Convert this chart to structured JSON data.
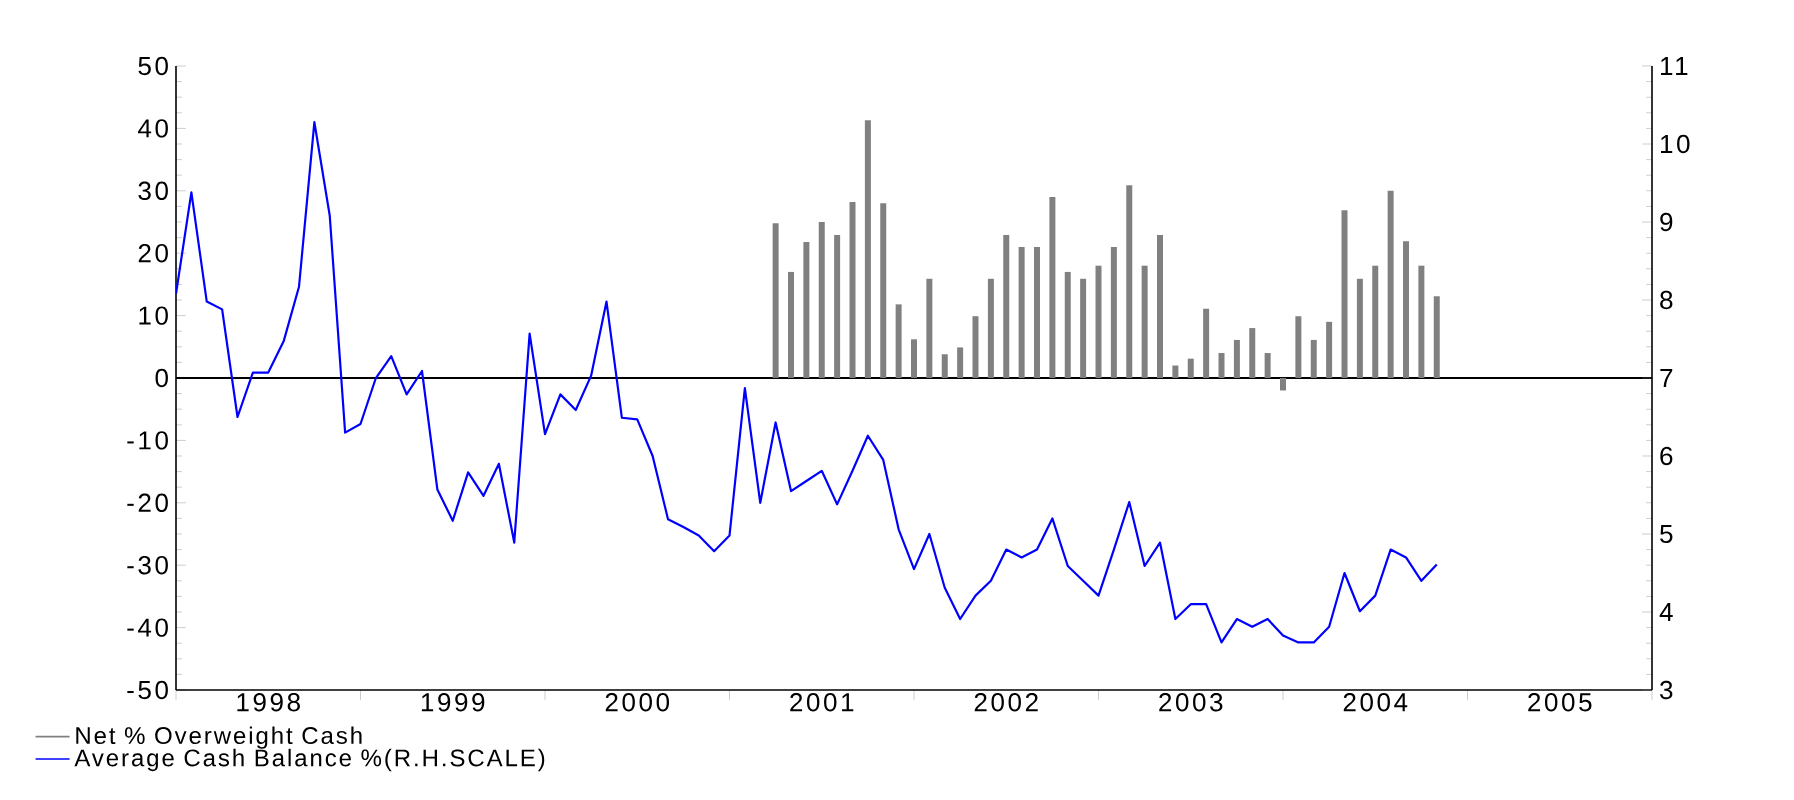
{
  "chart_data": {
    "type": "bar",
    "x": [
      "1998-01",
      "1998-02",
      "1998-03",
      "1998-04",
      "1998-05",
      "1998-06",
      "1998-07",
      "1998-08",
      "1998-09",
      "1998-10",
      "1998-11",
      "1998-12",
      "1999-01",
      "1999-02",
      "1999-03",
      "1999-04",
      "1999-05",
      "1999-06",
      "1999-07",
      "1999-08",
      "1999-09",
      "1999-10",
      "1999-11",
      "1999-12",
      "2000-01",
      "2000-02",
      "2000-03",
      "2000-04",
      "2000-05",
      "2000-06",
      "2000-07",
      "2000-08",
      "2000-09",
      "2000-10",
      "2000-11",
      "2000-12",
      "2001-01",
      "2001-02",
      "2001-03",
      "2001-04",
      "2001-05",
      "2001-06",
      "2001-07",
      "2001-08",
      "2001-09",
      "2001-10",
      "2001-11",
      "2001-12",
      "2002-01",
      "2002-02",
      "2002-03",
      "2002-04",
      "2002-05",
      "2002-06",
      "2002-07",
      "2002-08",
      "2002-09",
      "2002-10",
      "2002-11",
      "2002-12",
      "2003-01",
      "2003-02",
      "2003-03",
      "2003-04",
      "2003-05",
      "2003-06",
      "2003-07",
      "2003-08",
      "2003-09",
      "2003-10",
      "2003-11",
      "2003-12",
      "2004-01",
      "2004-02",
      "2004-03",
      "2004-04",
      "2004-05",
      "2004-06",
      "2004-07",
      "2004-08",
      "2004-09",
      "2004-10",
      "2004-11"
    ],
    "series": [
      {
        "name": "Net % Overweight Cash",
        "color": "#808080",
        "values": [
          null,
          null,
          null,
          null,
          null,
          null,
          null,
          null,
          null,
          null,
          null,
          null,
          null,
          null,
          null,
          null,
          null,
          null,
          null,
          null,
          null,
          null,
          null,
          null,
          null,
          null,
          null,
          null,
          null,
          null,
          null,
          null,
          null,
          null,
          null,
          null,
          null,
          null,
          null,
          24.8,
          17,
          21.8,
          25,
          22.9,
          28.2,
          41.3,
          28,
          11.8,
          6.2,
          15.9,
          3.8,
          4.9,
          9.9,
          15.9,
          22.9,
          21,
          21,
          29,
          17,
          15.9,
          18,
          21,
          30.9,
          18,
          22.9,
          2,
          3.1,
          11.1,
          4,
          6.1,
          8,
          4,
          -2,
          9.9,
          6.1,
          9,
          26.9,
          15.9,
          18,
          30,
          21.9,
          18,
          13.1
        ]
      },
      {
        "name": "Average Cash Balance %(R.H.SCALE)",
        "type": "line",
        "axis": "y2",
        "color": "#0000ff",
        "values": [
          8.08,
          9.38,
          7.98,
          7.88,
          6.5,
          7.07,
          7.07,
          7.47,
          8.17,
          10.28,
          9.08,
          6.3,
          6.41,
          7.0,
          7.28,
          6.79,
          7.09,
          5.57,
          5.17,
          5.79,
          5.49,
          5.9,
          4.89,
          7.57,
          6.28,
          6.79,
          6.59,
          7.03,
          7.98,
          6.49,
          6.47,
          6.0,
          5.19,
          5.09,
          4.98,
          4.78,
          4.98,
          6.87,
          5.4,
          6.43,
          5.55,
          5.68,
          5.81,
          5.38,
          5.81,
          6.26,
          5.95,
          5.06,
          4.55,
          5.0,
          4.31,
          3.91,
          4.21,
          4.4,
          4.8,
          4.7,
          4.8,
          5.2,
          4.59,
          4.4,
          4.21,
          4.8,
          5.41,
          4.59,
          4.89,
          3.91,
          4.1,
          4.1,
          3.61,
          3.91,
          3.81,
          3.91,
          3.7,
          3.61,
          3.61,
          3.81,
          4.5,
          4.01,
          4.21,
          4.8,
          4.7,
          4.4,
          4.61
        ]
      }
    ],
    "xlim": [
      "1998-01",
      "2006-01"
    ],
    "xticks": [
      {
        "value": "1998-01",
        "label": null
      },
      {
        "value": "1998-07",
        "label": "1998"
      },
      {
        "value": "1999-01",
        "label": null
      },
      {
        "value": "1999-07",
        "label": "1999"
      },
      {
        "value": "2000-01",
        "label": null
      },
      {
        "value": "2000-07",
        "label": "2000"
      },
      {
        "value": "2001-01",
        "label": null
      },
      {
        "value": "2001-07",
        "label": "2001"
      },
      {
        "value": "2002-01",
        "label": null
      },
      {
        "value": "2002-07",
        "label": "2002"
      },
      {
        "value": "2003-01",
        "label": null
      },
      {
        "value": "2003-07",
        "label": "2003"
      },
      {
        "value": "2004-01",
        "label": null
      },
      {
        "value": "2004-07",
        "label": "2004"
      },
      {
        "value": "2005-01",
        "label": null
      },
      {
        "value": "2005-07",
        "label": "2005"
      },
      {
        "value": "2006-01",
        "label": null
      }
    ],
    "ylim": [
      -50,
      50
    ],
    "yticks": [
      -50,
      -40,
      -30,
      -20,
      -10,
      0,
      10,
      20,
      30,
      40,
      50
    ],
    "y2lim": [
      3,
      11
    ],
    "y2ticks": [
      3,
      4,
      5,
      6,
      7,
      8,
      9,
      10,
      11
    ],
    "ref_lines": [
      {
        "axis": "y",
        "value": 0,
        "color": "#000000"
      }
    ],
    "legend": "bottom left",
    "grid": false
  }
}
